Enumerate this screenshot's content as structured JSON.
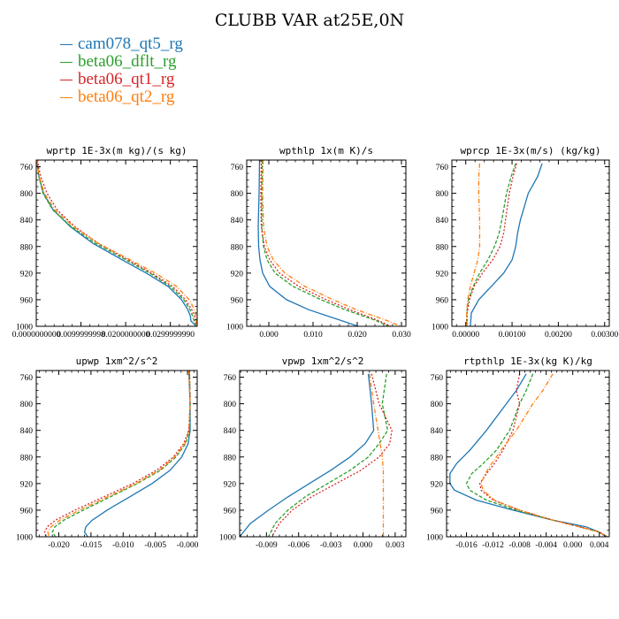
{
  "title": "CLUBB VAR at25E,0N",
  "legend": [
    {
      "label": "cam078_qt5_rg",
      "color": "#1f77b4"
    },
    {
      "label": "beta06_dflt_rg",
      "color": "#2ca02c"
    },
    {
      "label": "beta06_qt1_rg",
      "color": "#d62728"
    },
    {
      "label": "beta06_qt2_rg",
      "color": "#ff7f0e"
    }
  ],
  "chart_data": [
    {
      "type": "line",
      "title": "wprtp 1E-3x(m kg)/(s kg)",
      "xlim": [
        0,
        0.036
      ],
      "ylim": [
        1000,
        750
      ],
      "xticks": [
        0.0,
        0.01,
        0.02,
        0.03
      ],
      "xtick_labels": [
        "0.0000000000",
        "0.0099999998",
        "0.0200000000",
        "0.0299999990"
      ],
      "yticks": [
        760,
        800,
        840,
        880,
        920,
        960,
        1000
      ],
      "y": [
        750,
        760,
        775,
        800,
        825,
        850,
        875,
        900,
        920,
        940,
        960,
        975,
        985,
        992,
        1000
      ],
      "series": [
        {
          "name": "cam078_qt5_rg",
          "x": [
            0.0002,
            0.0003,
            0.0006,
            0.0016,
            0.0038,
            0.0076,
            0.0126,
            0.0192,
            0.0246,
            0.0295,
            0.0325,
            0.0339,
            0.0345,
            0.0346,
            0.0358
          ]
        },
        {
          "name": "beta06_dflt_rg",
          "x": [
            0.0002,
            0.0003,
            0.0006,
            0.0015,
            0.0037,
            0.0078,
            0.0132,
            0.02,
            0.0254,
            0.03,
            0.033,
            0.0344,
            0.035,
            0.0353,
            0.0357
          ]
        },
        {
          "name": "beta06_qt1_rg",
          "x": [
            0.0003,
            0.0005,
            0.001,
            0.0024,
            0.0047,
            0.0086,
            0.0138,
            0.0205,
            0.0258,
            0.0305,
            0.0334,
            0.0348,
            0.0354,
            0.0356,
            0.0357
          ]
        },
        {
          "name": "beta06_qt2_rg",
          "x": [
            0.0002,
            0.0003,
            0.0007,
            0.0018,
            0.0042,
            0.0083,
            0.0138,
            0.021,
            0.0266,
            0.0314,
            0.0342,
            0.0354,
            0.0357,
            0.0358,
            0.0359
          ]
        }
      ]
    },
    {
      "type": "line",
      "title": "wpthlp 1x(m K)/s",
      "xlim": [
        -0.005,
        0.031
      ],
      "ylim": [
        1000,
        750
      ],
      "xticks": [
        0.0,
        0.01,
        0.02,
        0.03
      ],
      "xtick_labels": [
        "0.000",
        "0.010",
        "0.020",
        "0.030"
      ],
      "yticks": [
        760,
        800,
        840,
        880,
        920,
        960,
        1000
      ],
      "y": [
        750,
        800,
        850,
        880,
        900,
        920,
        940,
        960,
        975,
        990,
        1000
      ],
      "series": [
        {
          "name": "cam078_qt5_rg",
          "x": [
            -0.0021,
            -0.0022,
            -0.0024,
            -0.0023,
            -0.002,
            -0.0014,
            0.0002,
            0.004,
            0.009,
            0.0158,
            0.0202
          ]
        },
        {
          "name": "beta06_dflt_rg",
          "x": [
            -0.0015,
            -0.0016,
            -0.0016,
            -0.0012,
            -0.0004,
            0.0014,
            0.0055,
            0.0118,
            0.0172,
            0.0237,
            0.0272
          ]
        },
        {
          "name": "beta06_qt1_rg",
          "x": [
            -0.0017,
            -0.0018,
            -0.0017,
            -0.001,
            0.0002,
            0.0024,
            0.0068,
            0.013,
            0.0183,
            0.0243,
            0.0277
          ]
        },
        {
          "name": "beta06_qt2_rg",
          "x": [
            -0.0013,
            -0.0014,
            -0.0012,
            -0.0004,
            0.001,
            0.0036,
            0.0082,
            0.0145,
            0.0198,
            0.0262,
            0.0298
          ]
        }
      ]
    },
    {
      "type": "line",
      "title": "wprcp 1E-3x(m/s) (kg/kg)",
      "xlim": [
        -0.0003,
        0.0031
      ],
      "ylim": [
        1000,
        750
      ],
      "xticks": [
        0.0,
        0.001,
        0.002,
        0.003
      ],
      "xtick_labels": [
        "0.00000",
        "0.00100",
        "0.00200",
        "0.00300"
      ],
      "yticks": [
        760,
        800,
        840,
        880,
        920,
        960,
        1000
      ],
      "y": [
        755,
        775,
        800,
        840,
        860,
        880,
        900,
        920,
        940,
        960,
        980,
        1000
      ],
      "series": [
        {
          "name": "cam078_qt5_rg",
          "x": [
            0.00165,
            0.00155,
            0.00135,
            0.00118,
            0.00112,
            0.00108,
            0.001,
            0.00082,
            0.00055,
            0.00028,
            0.00012,
            0.0001
          ]
        },
        {
          "name": "beta06_dflt_rg",
          "x": [
            0.00108,
            0.00098,
            0.00088,
            0.00078,
            0.00072,
            0.00062,
            0.00048,
            0.0003,
            0.00016,
            6e-05,
            2e-05,
            2e-05
          ]
        },
        {
          "name": "beta06_qt1_rg",
          "x": [
            0.0011,
            0.00102,
            0.00094,
            0.00086,
            0.00082,
            0.00074,
            0.00058,
            0.00036,
            0.00018,
            8e-05,
            3e-05,
            3e-05
          ]
        },
        {
          "name": "beta06_qt2_rg",
          "x": [
            0.0003,
            0.00028,
            0.00028,
            0.0003,
            0.0003,
            0.0003,
            0.00026,
            0.00018,
            0.0001,
            4e-05,
            2e-05,
            2e-05
          ]
        }
      ]
    },
    {
      "type": "line",
      "title": "upwp 1xm^2/s^2",
      "xlim": [
        -0.0235,
        0.0015
      ],
      "ylim": [
        1000,
        750
      ],
      "xticks": [
        -0.02,
        -0.015,
        -0.01,
        -0.005,
        0.0
      ],
      "xtick_labels": [
        "-0.020",
        "-0.015",
        "-0.010",
        "-0.005",
        "-0.000"
      ],
      "yticks": [
        760,
        800,
        840,
        880,
        920,
        960,
        1000
      ],
      "y": [
        750,
        800,
        840,
        860,
        880,
        900,
        920,
        940,
        960,
        975,
        985,
        993,
        1000
      ],
      "series": [
        {
          "name": "cam078_qt5_rg",
          "x": [
            0.0002,
            0.0004,
            0.0004,
            0.0001,
            -0.0009,
            -0.0027,
            -0.0055,
            -0.009,
            -0.0125,
            -0.0148,
            -0.0158,
            -0.016,
            -0.0155
          ]
        },
        {
          "name": "beta06_dflt_rg",
          "x": [
            0.0003,
            0.0004,
            0.0003,
            -0.0003,
            -0.0018,
            -0.0042,
            -0.0078,
            -0.012,
            -0.0162,
            -0.0192,
            -0.0206,
            -0.021,
            -0.0205
          ]
        },
        {
          "name": "beta06_qt1_rg",
          "x": [
            0.0003,
            0.0004,
            0.0002,
            -0.0006,
            -0.0022,
            -0.0048,
            -0.0085,
            -0.013,
            -0.0175,
            -0.0205,
            -0.0218,
            -0.0222,
            -0.022
          ]
        },
        {
          "name": "beta06_qt2_rg",
          "x": [
            0.0002,
            0.0004,
            0.0002,
            -0.0004,
            -0.002,
            -0.0044,
            -0.008,
            -0.0124,
            -0.0168,
            -0.0198,
            -0.0212,
            -0.0217,
            -0.0215
          ]
        }
      ]
    },
    {
      "type": "line",
      "title": "vpwp 1xm^2/s^2",
      "xlim": [
        -0.0115,
        0.004
      ],
      "ylim": [
        1000,
        750
      ],
      "xticks": [
        -0.009,
        -0.006,
        -0.003,
        0.0,
        0.003
      ],
      "xtick_labels": [
        "-0.009",
        "-0.006",
        "-0.003",
        "0.000",
        "0.003"
      ],
      "yticks": [
        760,
        800,
        840,
        880,
        920,
        960,
        1000
      ],
      "y": [
        755,
        800,
        840,
        860,
        880,
        900,
        920,
        940,
        960,
        980,
        1000
      ],
      "series": [
        {
          "name": "cam078_qt5_rg",
          "x": [
            0.0005,
            0.0008,
            0.001,
            0.0002,
            -0.0012,
            -0.003,
            -0.005,
            -0.007,
            -0.0088,
            -0.0105,
            -0.0115
          ]
        },
        {
          "name": "beta06_dflt_rg",
          "x": [
            0.0022,
            0.0018,
            0.0023,
            0.0015,
            0.0005,
            -0.0012,
            -0.0033,
            -0.0054,
            -0.007,
            -0.0082,
            -0.0088
          ]
        },
        {
          "name": "beta06_qt1_rg",
          "x": [
            0.0008,
            0.0015,
            0.0027,
            0.0025,
            0.0015,
            -0.0002,
            -0.0025,
            -0.0048,
            -0.0066,
            -0.0078,
            -0.0085
          ]
        },
        {
          "name": "beta06_qt2_rg",
          "x": [
            0.0006,
            0.001,
            0.0014,
            0.0016,
            0.0018,
            0.0019,
            0.0019,
            0.0019,
            0.0019,
            0.0019,
            0.0019
          ]
        }
      ]
    },
    {
      "type": "line",
      "title": "rtpthlp 1E-3x(kg K)/kg",
      "xlim": [
        -0.019,
        0.0055
      ],
      "ylim": [
        1000,
        750
      ],
      "xticks": [
        -0.016,
        -0.012,
        -0.008,
        -0.004,
        0.0,
        0.004
      ],
      "xtick_labels": [
        "-0.016",
        "-0.012",
        "-0.008",
        "-0.004",
        "0.000",
        "0.004"
      ],
      "yticks": [
        760,
        800,
        840,
        880,
        920,
        960,
        1000
      ],
      "y": [
        755,
        780,
        800,
        840,
        870,
        890,
        905,
        920,
        930,
        945,
        960,
        975,
        985,
        993,
        1000
      ],
      "series": [
        {
          "name": "cam078_qt5_rg",
          "x": [
            -0.007,
            -0.0085,
            -0.01,
            -0.013,
            -0.0155,
            -0.0175,
            -0.0185,
            -0.0185,
            -0.0178,
            -0.0145,
            -0.009,
            -0.003,
            0.002,
            0.004,
            0.005
          ]
        },
        {
          "name": "beta06_dflt_rg",
          "x": [
            -0.006,
            -0.007,
            -0.008,
            -0.0095,
            -0.0115,
            -0.0135,
            -0.0152,
            -0.016,
            -0.0155,
            -0.013,
            -0.0085,
            -0.003,
            0.001,
            0.004,
            0.0052
          ]
        },
        {
          "name": "beta06_qt1_rg",
          "x": [
            -0.008,
            -0.0085,
            -0.008,
            -0.009,
            -0.0105,
            -0.0118,
            -0.013,
            -0.014,
            -0.0138,
            -0.012,
            -0.008,
            -0.003,
            0.001,
            0.004,
            0.0052
          ]
        },
        {
          "name": "beta06_qt2_rg",
          "x": [
            -0.003,
            -0.0045,
            -0.006,
            -0.0085,
            -0.0108,
            -0.0122,
            -0.0132,
            -0.0138,
            -0.0135,
            -0.0118,
            -0.008,
            -0.003,
            0.001,
            0.004,
            0.0052
          ]
        }
      ]
    }
  ]
}
